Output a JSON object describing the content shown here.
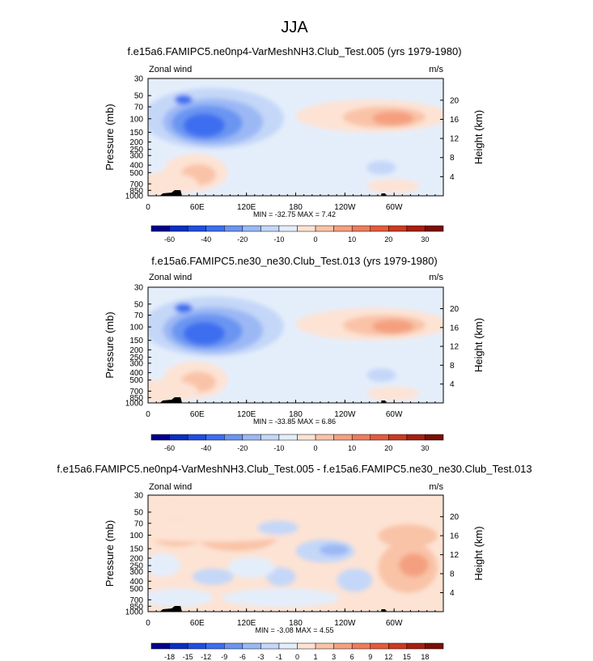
{
  "figure": {
    "title": "JJA"
  },
  "chart_data": [
    {
      "type": "heatmap",
      "title": "f.e15a6.FAMIPC5.ne0np4-VarMeshNH3.Club_Test.005 (yrs 1979-1980)",
      "left_label": "Zonal wind",
      "right_label": "m/s",
      "ylabel": "Pressure (mb)",
      "ylabel_right": "Height (km)",
      "x_ticks": [
        "0",
        "60E",
        "120E",
        "180",
        "120W",
        "60W"
      ],
      "y_ticks": [
        "30",
        "50",
        "70",
        "100",
        "150",
        "200",
        "250",
        "300",
        "400",
        "500",
        "700",
        "850",
        "1000"
      ],
      "y_ticks_right": [
        "20",
        "16",
        "12",
        "8",
        "4"
      ],
      "stats": "MIN = -32.75   MAX =   7.42",
      "colorbar_labels": [
        "-60",
        "-40",
        "-20",
        "-10",
        "0",
        "10",
        "20",
        "30"
      ],
      "colorbar_colors": [
        "#00008b",
        "#0a2fbf",
        "#1f4fe0",
        "#3c6ef0",
        "#6b95f2",
        "#9bb8f5",
        "#c5d7f8",
        "#e4eefb",
        "#fde3d4",
        "#f9c3a7",
        "#f4a080",
        "#ee7c5c",
        "#e55a3c",
        "#cc3a21",
        "#a61f12",
        "#7a0e06"
      ],
      "grid": false,
      "legend": "bottom"
    },
    {
      "type": "heatmap",
      "title": "f.e15a6.FAMIPC5.ne30_ne30.Club_Test.013 (yrs 1979-1980)",
      "left_label": "Zonal wind",
      "right_label": "m/s",
      "ylabel": "Pressure (mb)",
      "ylabel_right": "Height (km)",
      "x_ticks": [
        "0",
        "60E",
        "120E",
        "180",
        "120W",
        "60W"
      ],
      "y_ticks": [
        "30",
        "50",
        "70",
        "100",
        "150",
        "200",
        "250",
        "300",
        "400",
        "500",
        "700",
        "850",
        "1000"
      ],
      "y_ticks_right": [
        "20",
        "16",
        "12",
        "8",
        "4"
      ],
      "stats": "MIN = -33.85   MAX =   6.86",
      "colorbar_labels": [
        "-60",
        "-40",
        "-20",
        "-10",
        "0",
        "10",
        "20",
        "30"
      ],
      "colorbar_colors": [
        "#00008b",
        "#0a2fbf",
        "#1f4fe0",
        "#3c6ef0",
        "#6b95f2",
        "#9bb8f5",
        "#c5d7f8",
        "#e4eefb",
        "#fde3d4",
        "#f9c3a7",
        "#f4a080",
        "#ee7c5c",
        "#e55a3c",
        "#cc3a21",
        "#a61f12",
        "#7a0e06"
      ],
      "grid": false,
      "legend": "bottom"
    },
    {
      "type": "heatmap",
      "title": "f.e15a6.FAMIPC5.ne0np4-VarMeshNH3.Club_Test.005 - f.e15a6.FAMIPC5.ne30_ne30.Club_Test.013",
      "left_label": "Zonal wind",
      "right_label": "m/s",
      "ylabel": "Pressure (mb)",
      "ylabel_right": "Height (km)",
      "x_ticks": [
        "0",
        "60E",
        "120E",
        "180",
        "120W",
        "60W"
      ],
      "y_ticks": [
        "30",
        "50",
        "70",
        "100",
        "150",
        "200",
        "250",
        "300",
        "400",
        "500",
        "700",
        "850",
        "1000"
      ],
      "y_ticks_right": [
        "20",
        "16",
        "12",
        "8",
        "4"
      ],
      "stats": "MIN = -3.08   MAX =   4.55",
      "colorbar_labels": [
        "-18",
        "-15",
        "-12",
        "-9",
        "-6",
        "-3",
        "-1",
        "0",
        "1",
        "3",
        "6",
        "9",
        "12",
        "15",
        "18"
      ],
      "colorbar_colors": [
        "#00008b",
        "#0a2fbf",
        "#1f4fe0",
        "#3c6ef0",
        "#6b95f2",
        "#9bb8f5",
        "#c5d7f8",
        "#e4eefb",
        "#fde3d4",
        "#f9c3a7",
        "#f4a080",
        "#ee7c5c",
        "#e55a3c",
        "#cc3a21",
        "#a61f12",
        "#7a0e06"
      ],
      "grid": false,
      "legend": "bottom"
    }
  ]
}
